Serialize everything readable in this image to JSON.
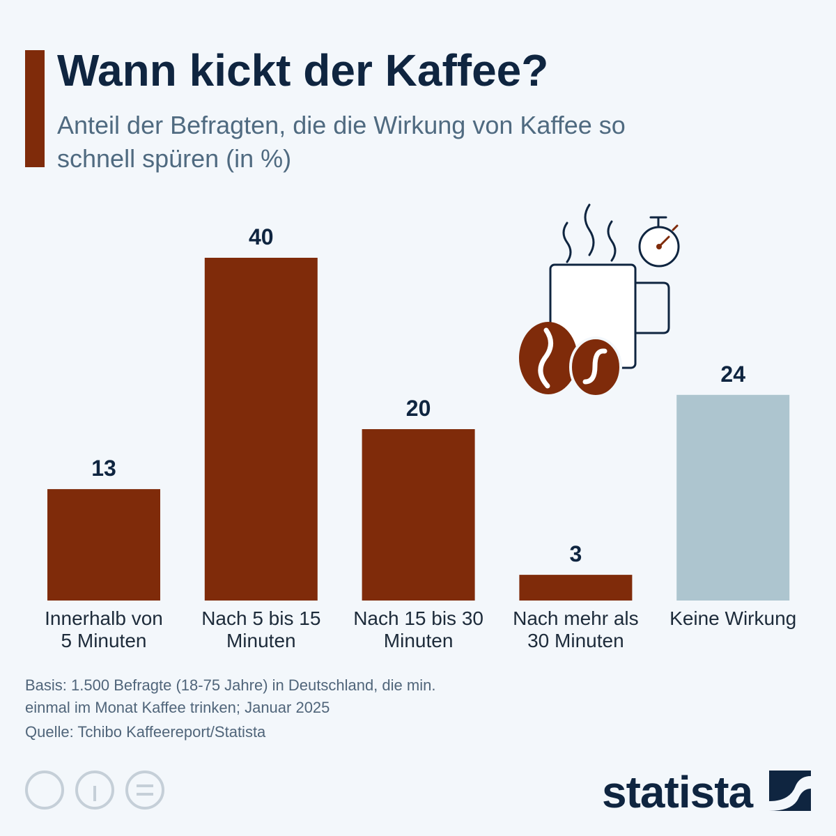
{
  "chart_data": {
    "type": "bar",
    "title": "Wann kickt der Kaffee?",
    "subtitle": "Anteil der Befragten, die die Wirkung von Kaffee so schnell spüren (in %)",
    "categories": [
      "Innerhalb von 5 Minuten",
      "Nach 5 bis 15 Minuten",
      "Nach 15 bis 30 Minuten",
      "Nach mehr als 30 Minuten",
      "Keine Wirkung"
    ],
    "values": [
      13,
      40,
      20,
      3,
      24
    ],
    "colors": [
      "#7f2b0a",
      "#7f2b0a",
      "#7f2b0a",
      "#7f2b0a",
      "#adc5cf"
    ],
    "note": "Basis: 1.500 Befragte (18-75 Jahre) in Deutschland, die min. einmal im Monat Kaffee trinken; Januar 2025",
    "source": "Quelle: Tchibo Kaffeereport/Statista",
    "brand": "statista"
  }
}
